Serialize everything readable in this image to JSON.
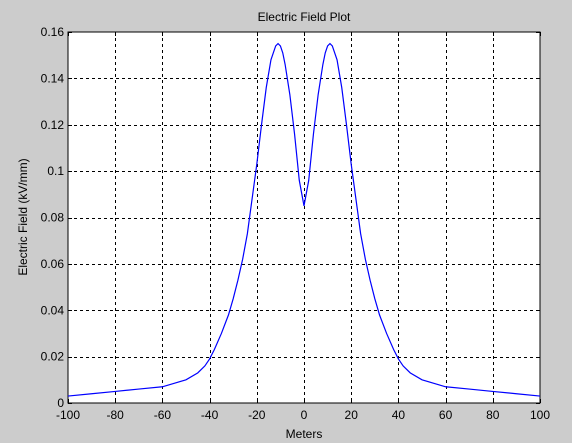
{
  "window": {
    "background": "#cccccc"
  },
  "chart_data": {
    "type": "line",
    "title": "Electric Field Plot",
    "xlabel": "Meters",
    "ylabel": "Electric Field (kV/mm)",
    "xlim": [
      -100,
      100
    ],
    "ylim": [
      0,
      0.16
    ],
    "xticks": [
      -100,
      -80,
      -60,
      -40,
      -20,
      0,
      20,
      40,
      60,
      80,
      100
    ],
    "xtick_labels": [
      "-100",
      "-80",
      "-60",
      "-40",
      "-20",
      "0",
      "20",
      "40",
      "60",
      "80",
      "100"
    ],
    "yticks": [
      0,
      0.02,
      0.04,
      0.06,
      0.08,
      0.1,
      0.12,
      0.14,
      0.16
    ],
    "ytick_labels": [
      "0",
      "0.02",
      "0.04",
      "0.06",
      "0.08",
      "0.1",
      "0.12",
      "0.14",
      "0.16"
    ],
    "grid": true,
    "grid_style": "dashed",
    "line_color": "#0000ff",
    "axes_background": "#ffffff",
    "series": [
      {
        "x": [
          -100,
          -90,
          -80,
          -70,
          -60,
          -55,
          -50,
          -45,
          -42,
          -40,
          -38,
          -35,
          -32,
          -30,
          -28,
          -26,
          -24,
          -22,
          -20,
          -18,
          -16,
          -14,
          -12,
          -11,
          -10,
          -9,
          -8,
          -6,
          -4,
          -2,
          0,
          2,
          4,
          6,
          8,
          9,
          10,
          11,
          12,
          14,
          16,
          18,
          20,
          22,
          24,
          26,
          28,
          30,
          32,
          35,
          38,
          40,
          42,
          45,
          50,
          55,
          60,
          70,
          80,
          90,
          100
        ],
        "y": [
          0.003,
          0.004,
          0.005,
          0.006,
          0.007,
          0.0085,
          0.01,
          0.013,
          0.016,
          0.019,
          0.023,
          0.03,
          0.038,
          0.045,
          0.053,
          0.062,
          0.073,
          0.088,
          0.103,
          0.12,
          0.136,
          0.148,
          0.154,
          0.155,
          0.154,
          0.151,
          0.146,
          0.133,
          0.116,
          0.096,
          0.085,
          0.096,
          0.116,
          0.133,
          0.146,
          0.151,
          0.154,
          0.155,
          0.154,
          0.148,
          0.136,
          0.12,
          0.103,
          0.088,
          0.073,
          0.062,
          0.053,
          0.045,
          0.038,
          0.03,
          0.023,
          0.019,
          0.016,
          0.013,
          0.01,
          0.0085,
          0.007,
          0.006,
          0.005,
          0.004,
          0.003
        ]
      }
    ]
  }
}
